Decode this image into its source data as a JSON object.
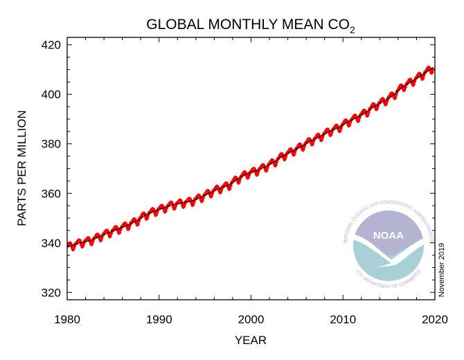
{
  "chart_data": {
    "type": "scatter",
    "title": "GLOBAL MONTHLY MEAN CO",
    "title_subscript": "2",
    "xlabel": "YEAR",
    "ylabel": "PARTS PER MILLION",
    "xlim": [
      1980,
      2020
    ],
    "ylim": [
      317,
      423
    ],
    "xticks": [
      1980,
      1990,
      2000,
      2010,
      2020
    ],
    "yticks": [
      320,
      340,
      360,
      380,
      400,
      420
    ],
    "grid": false,
    "annotation": "November 2019",
    "series": [
      {
        "kind": "monthly mean points",
        "color": "#ff0000",
        "annual_mean_years": [
          1980,
          1981,
          1982,
          1983,
          1984,
          1985,
          1986,
          1987,
          1988,
          1989,
          1990,
          1991,
          1992,
          1993,
          1994,
          1995,
          1996,
          1997,
          1998,
          1999,
          2000,
          2001,
          2002,
          2003,
          2004,
          2005,
          2006,
          2007,
          2008,
          2009,
          2010,
          2011,
          2012,
          2013,
          2014,
          2015,
          2016,
          2017,
          2018,
          2019
        ],
        "annual_mean_ppm": [
          338.9,
          340.1,
          340.9,
          342.5,
          344.1,
          345.5,
          347.0,
          348.7,
          351.2,
          352.8,
          354.1,
          355.4,
          356.1,
          356.8,
          358.3,
          360.2,
          361.9,
          363.1,
          365.7,
          367.8,
          369.0,
          370.6,
          372.6,
          375.2,
          377.0,
          379.0,
          381.2,
          382.9,
          385.0,
          386.5,
          388.8,
          390.6,
          392.7,
          395.4,
          397.3,
          399.7,
          403.1,
          405.2,
          407.6,
          410.1
        ],
        "seasonal_offset_by_month": [
          0.4,
          0.9,
          1.2,
          1.3,
          1.0,
          0.2,
          -0.9,
          -1.8,
          -1.6,
          -0.7,
          0.1,
          0.4
        ],
        "last_month": "2019-10"
      },
      {
        "kind": "deseasonalized trend line",
        "color": "#000000"
      }
    ]
  },
  "logo": {
    "name": "NOAA",
    "ring_top": "NATIONAL OCEANIC AND ATMOSPHERIC ADMINISTRATION",
    "ring_bottom": "U.S. DEPARTMENT OF COMMERCE",
    "colors": {
      "upper": "#b4b4d2",
      "lower": "#a9d0d7",
      "text": "#b0b0cf"
    }
  }
}
